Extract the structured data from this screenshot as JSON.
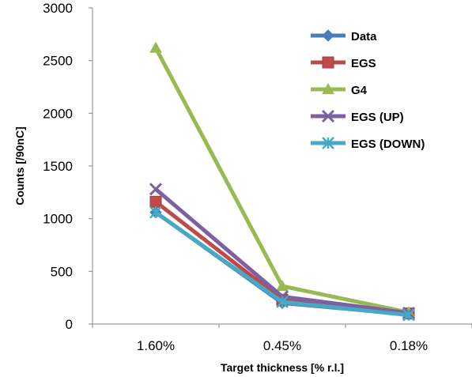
{
  "chart_data": {
    "type": "line",
    "categories": [
      "1.60%",
      "0.45%",
      "0.18%"
    ],
    "xlabel": "Target thickness [% r.l.]",
    "ylabel": "Counts [/90nC]",
    "ylim": [
      0,
      3000
    ],
    "yticks": [
      0,
      500,
      1000,
      1500,
      2000,
      2500,
      3000
    ],
    "grid": false,
    "legend_position": "top-right",
    "series": [
      {
        "name": "Data",
        "values": [
          1060,
          200,
          90
        ],
        "color": "#4a7ebb",
        "marker": "diamond"
      },
      {
        "name": "EGS",
        "values": [
          1160,
          230,
          100
        ],
        "color": "#be4b48",
        "marker": "square"
      },
      {
        "name": "G4",
        "values": [
          2620,
          360,
          110
        ],
        "color": "#98b954",
        "marker": "triangle"
      },
      {
        "name": "EGS (UP)",
        "values": [
          1280,
          260,
          105
        ],
        "color": "#7d60a0",
        "marker": "x"
      },
      {
        "name": "EGS (DOWN)",
        "values": [
          1060,
          210,
          85
        ],
        "color": "#46aac5",
        "marker": "asterisk"
      }
    ]
  }
}
